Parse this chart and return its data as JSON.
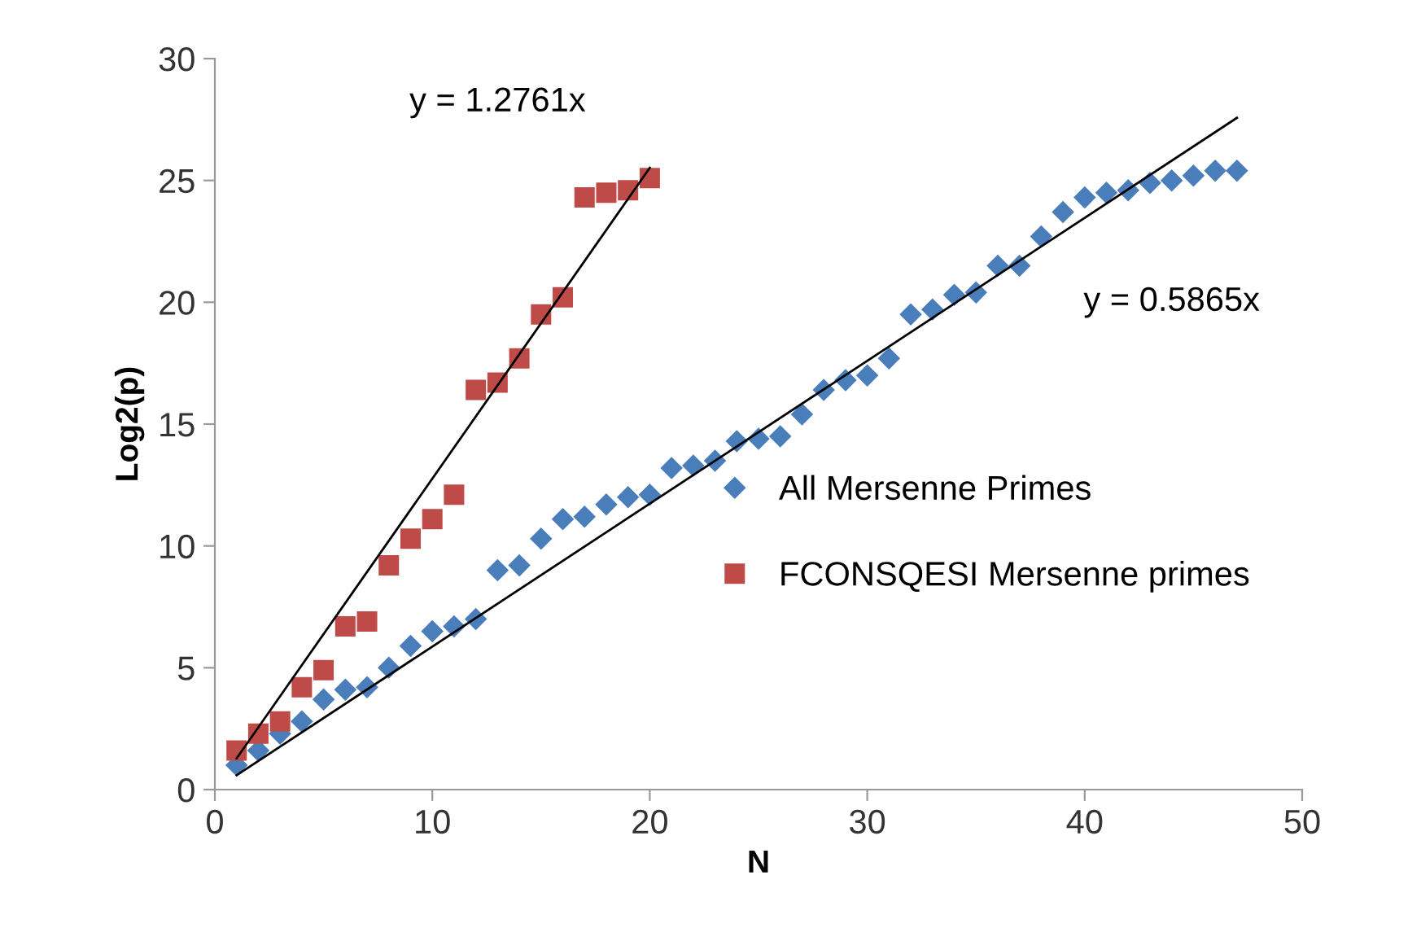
{
  "chart_data": {
    "type": "scatter",
    "xlabel": "N",
    "ylabel": "Log2(p)",
    "xlim": [
      0,
      50
    ],
    "xticks": [
      0,
      10,
      20,
      30,
      40,
      50
    ],
    "ylim": [
      0,
      30
    ],
    "yticks": [
      0,
      5,
      10,
      15,
      20,
      25,
      30
    ],
    "grid": false,
    "legend": "right",
    "series": [
      {
        "name": "All Mersenne Primes",
        "color": "#4a7ebb",
        "marker": "diamond",
        "x": [
          1,
          2,
          3,
          4,
          5,
          6,
          7,
          8,
          9,
          10,
          11,
          12,
          13,
          14,
          15,
          16,
          17,
          18,
          19,
          20,
          21,
          22,
          23,
          24,
          25,
          26,
          27,
          28,
          29,
          30,
          31,
          32,
          33,
          34,
          35,
          36,
          37,
          38,
          39,
          40,
          41,
          42,
          43,
          44,
          45,
          46,
          47
        ],
        "values": [
          1.0,
          1.6,
          2.3,
          2.8,
          3.7,
          4.1,
          4.2,
          5.0,
          5.9,
          6.5,
          6.7,
          7.0,
          9.0,
          9.2,
          10.3,
          11.1,
          11.2,
          11.7,
          12.0,
          12.1,
          13.2,
          13.3,
          13.5,
          14.3,
          14.4,
          14.5,
          15.4,
          16.4,
          16.8,
          17.0,
          17.7,
          19.5,
          19.7,
          20.3,
          20.4,
          21.5,
          21.5,
          22.7,
          23.7,
          24.3,
          24.5,
          24.6,
          24.9,
          25.0,
          25.2,
          25.4,
          25.4
        ]
      },
      {
        "name": "FCONSQESI Mersenne primes",
        "color": "#be4b48",
        "marker": "square",
        "x": [
          1,
          2,
          3,
          4,
          5,
          6,
          7,
          8,
          9,
          10,
          11,
          12,
          13,
          14,
          15,
          16,
          17,
          18,
          19,
          20
        ],
        "values": [
          1.6,
          2.3,
          2.8,
          4.2,
          4.9,
          6.7,
          6.9,
          9.2,
          10.3,
          11.1,
          12.1,
          16.4,
          16.7,
          17.7,
          19.5,
          20.2,
          24.3,
          24.5,
          24.6,
          25.1
        ]
      },
      {
        "type": "line",
        "color": "#000000",
        "marker": "none",
        "line_style": "solid",
        "x": [
          1,
          20
        ],
        "values": [
          1.28,
          25.52
        ]
      },
      {
        "type": "line",
        "color": "#000000",
        "marker": "none",
        "line_style": "solid",
        "x": [
          1,
          47
        ],
        "values": [
          0.59,
          27.57
        ]
      }
    ],
    "annotations": [
      "y = 1.2761x",
      "y = 0.5865x"
    ]
  }
}
